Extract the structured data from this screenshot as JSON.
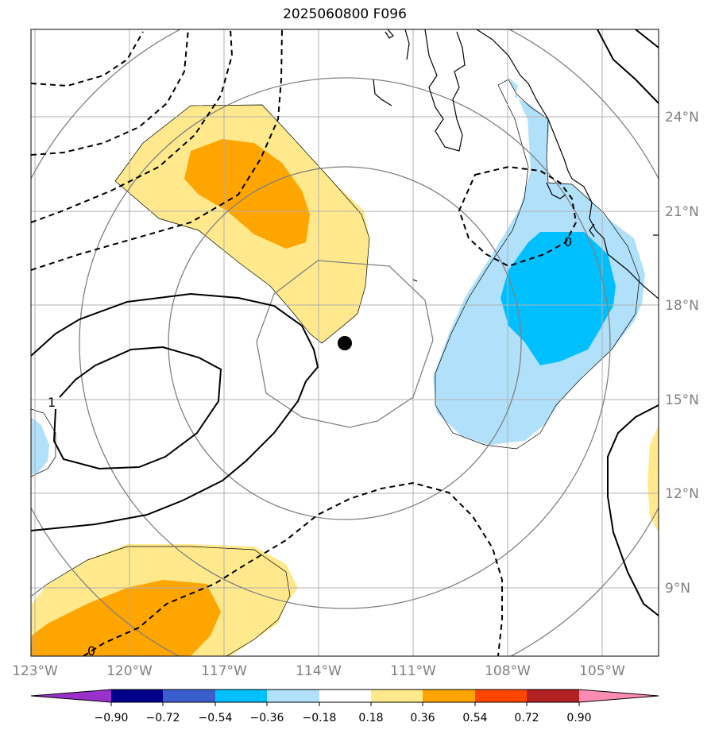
{
  "title": "2025060800 F096",
  "map": {
    "lon_labels": [
      "123°W",
      "120°W",
      "117°W",
      "114°W",
      "111°W",
      "108°W",
      "105°W"
    ],
    "lat_labels": [
      "24°N",
      "21°N",
      "18°N",
      "15°N",
      "12°N",
      "9°N"
    ],
    "contour_labels": [
      "1",
      "0",
      "0"
    ],
    "storm_center": "marker"
  },
  "colorbar": {
    "ticks": [
      "−0.90",
      "−0.72",
      "−0.54",
      "−0.36",
      "−0.18",
      "0.18",
      "0.36",
      "0.54",
      "0.72",
      "0.90"
    ],
    "colors": {
      "extend_low": "#9932cc",
      "bin_1": "#00008b",
      "bin_2": "#3a5fcd",
      "bin_3": "#00bfff",
      "bin_4": "#b0e0fa",
      "bin_5": "#ffffff",
      "bin_6": "#ffe98c",
      "bin_7": "#ffa500",
      "bin_8": "#ff4500",
      "bin_9": "#b22222",
      "extend_high": "#ff8cb4"
    }
  }
}
